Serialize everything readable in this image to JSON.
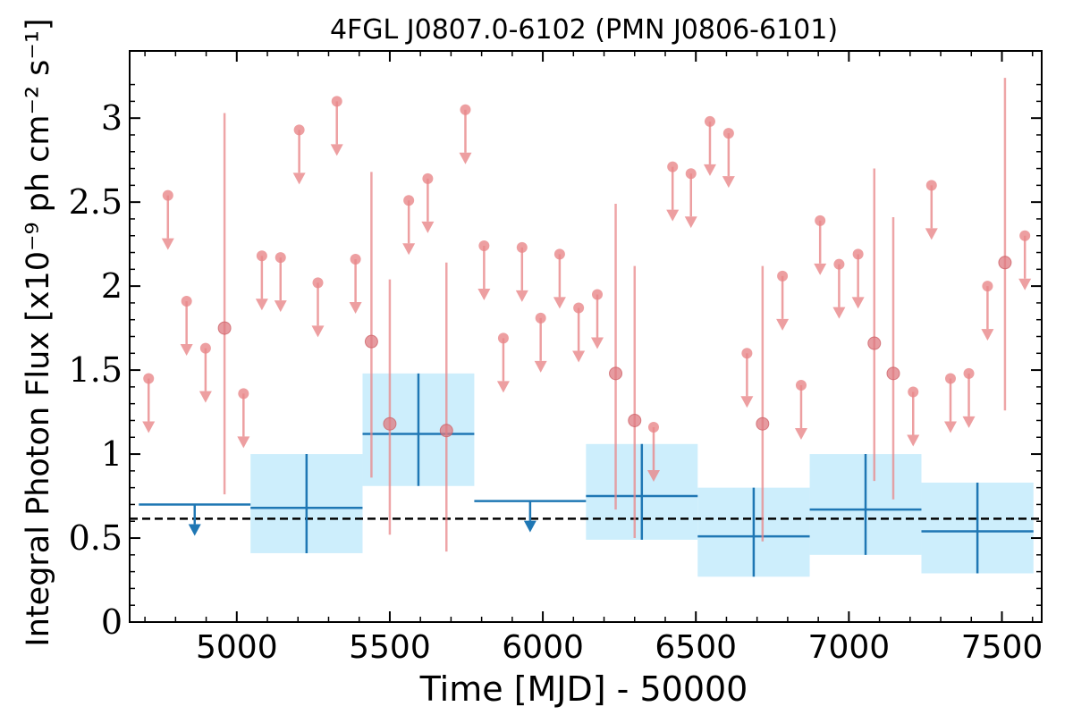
{
  "chart_data": {
    "type": "scatter",
    "title": "4FGL J0807.0-6102 (PMN J0806-6101)",
    "xlabel": "Time [MJD] - 50000",
    "ylabel": "Integral Photon Flux [x10⁻⁹ ph cm⁻² s⁻¹]",
    "xlim": [
      4650,
      7630
    ],
    "ylim": [
      0,
      3.4
    ],
    "x_ticks": [
      5000,
      5500,
      6000,
      6500,
      7000,
      7500
    ],
    "x_tick_labels": [
      "5000",
      "5500",
      "6000",
      "6500",
      "7000",
      "7500"
    ],
    "y_ticks": [
      0,
      0.5,
      1,
      1.5,
      2,
      2.5,
      3
    ],
    "y_tick_labels": [
      "0",
      "0.5",
      "1",
      "1.5",
      "2",
      "2.5",
      "3"
    ],
    "reference_line": {
      "y": 0.615,
      "style": "dashed",
      "color": "#000000"
    },
    "colors": {
      "short_bins": "#e8878a",
      "long_bins": "#1f77b4",
      "long_bins_fill": "#cdeefc"
    },
    "series": [
      {
        "kind": "short_bins",
        "detections": [
          {
            "x": 4960,
            "y": 1.75,
            "ylo": 0.76,
            "yhi": 3.03
          },
          {
            "x": 5440,
            "y": 1.67,
            "ylo": 0.86,
            "yhi": 2.68
          },
          {
            "x": 5500,
            "y": 1.18,
            "ylo": 0.52,
            "yhi": 2.04
          },
          {
            "x": 5685,
            "y": 1.14,
            "ylo": 0.42,
            "yhi": 2.14
          },
          {
            "x": 6238,
            "y": 1.48,
            "ylo": 0.67,
            "yhi": 2.49
          },
          {
            "x": 6300,
            "y": 1.2,
            "ylo": 0.5,
            "yhi": 2.12
          },
          {
            "x": 6718,
            "y": 1.18,
            "ylo": 0.48,
            "yhi": 2.12
          },
          {
            "x": 7083,
            "y": 1.66,
            "ylo": 0.84,
            "yhi": 2.7
          },
          {
            "x": 7145,
            "y": 1.48,
            "ylo": 0.73,
            "yhi": 2.41
          },
          {
            "x": 7510,
            "y": 2.14,
            "ylo": 1.26,
            "yhi": 3.24
          }
        ],
        "upper_limits": [
          {
            "x": 4712,
            "y": 1.45
          },
          {
            "x": 4775,
            "y": 2.54
          },
          {
            "x": 4836,
            "y": 1.91
          },
          {
            "x": 4898,
            "y": 1.63
          },
          {
            "x": 5022,
            "y": 1.36
          },
          {
            "x": 5082,
            "y": 2.18
          },
          {
            "x": 5143,
            "y": 2.17
          },
          {
            "x": 5204,
            "y": 2.93
          },
          {
            "x": 5265,
            "y": 2.02
          },
          {
            "x": 5327,
            "y": 3.1
          },
          {
            "x": 5388,
            "y": 2.16
          },
          {
            "x": 5562,
            "y": 2.51
          },
          {
            "x": 5624,
            "y": 2.64
          },
          {
            "x": 5747,
            "y": 3.05
          },
          {
            "x": 5808,
            "y": 2.24
          },
          {
            "x": 5871,
            "y": 1.69
          },
          {
            "x": 5932,
            "y": 2.23
          },
          {
            "x": 5993,
            "y": 1.81
          },
          {
            "x": 6055,
            "y": 2.19
          },
          {
            "x": 6117,
            "y": 1.87
          },
          {
            "x": 6178,
            "y": 1.95
          },
          {
            "x": 6362,
            "y": 1.16
          },
          {
            "x": 6424,
            "y": 2.71
          },
          {
            "x": 6484,
            "y": 2.67
          },
          {
            "x": 6546,
            "y": 2.98
          },
          {
            "x": 6607,
            "y": 2.91
          },
          {
            "x": 6667,
            "y": 1.6
          },
          {
            "x": 6783,
            "y": 2.06
          },
          {
            "x": 6844,
            "y": 1.41
          },
          {
            "x": 6906,
            "y": 2.39
          },
          {
            "x": 6968,
            "y": 2.13
          },
          {
            "x": 7030,
            "y": 2.19
          },
          {
            "x": 7210,
            "y": 1.37
          },
          {
            "x": 7270,
            "y": 2.6
          },
          {
            "x": 7332,
            "y": 1.45
          },
          {
            "x": 7392,
            "y": 1.48
          },
          {
            "x": 7453,
            "y": 2.0
          },
          {
            "x": 7575,
            "y": 2.3
          }
        ]
      },
      {
        "kind": "long_bins",
        "detections": [
          {
            "x0": 5045,
            "x1": 5411,
            "y": 0.68,
            "ylo": 0.41,
            "yhi": 1.0
          },
          {
            "x0": 5411,
            "x1": 5776,
            "y": 1.12,
            "ylo": 0.81,
            "yhi": 1.48
          },
          {
            "x0": 6141,
            "x1": 6506,
            "y": 0.75,
            "ylo": 0.49,
            "yhi": 1.06
          },
          {
            "x0": 6506,
            "x1": 6872,
            "y": 0.51,
            "ylo": 0.27,
            "yhi": 0.8
          },
          {
            "x0": 6872,
            "x1": 7237,
            "y": 0.67,
            "ylo": 0.4,
            "yhi": 1.0
          },
          {
            "x0": 7237,
            "x1": 7603,
            "y": 0.54,
            "ylo": 0.29,
            "yhi": 0.83
          }
        ],
        "upper_limits": [
          {
            "x0": 4680,
            "x1": 5045,
            "y": 0.7
          },
          {
            "x0": 5776,
            "x1": 6141,
            "y": 0.72
          }
        ]
      }
    ]
  }
}
